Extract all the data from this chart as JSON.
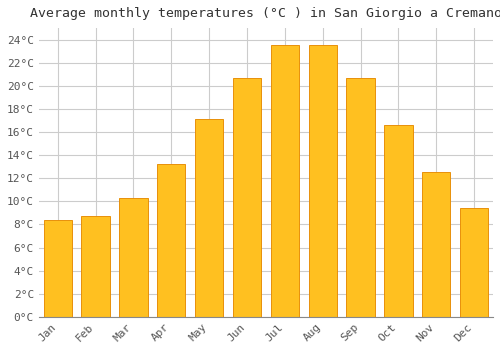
{
  "title": "Average monthly temperatures (°C ) in San Giorgio a Cremano",
  "months": [
    "Jan",
    "Feb",
    "Mar",
    "Apr",
    "May",
    "Jun",
    "Jul",
    "Aug",
    "Sep",
    "Oct",
    "Nov",
    "Dec"
  ],
  "temperatures": [
    8.4,
    8.7,
    10.3,
    13.2,
    17.1,
    20.7,
    23.5,
    23.5,
    20.7,
    16.6,
    12.5,
    9.4
  ],
  "bar_color": "#FFC020",
  "bar_edge_color": "#E8900A",
  "background_color": "#FFFFFF",
  "plot_bg_color": "#FFFFFF",
  "grid_color": "#CCCCCC",
  "ylim": [
    0,
    25
  ],
  "yticks": [
    0,
    2,
    4,
    6,
    8,
    10,
    12,
    14,
    16,
    18,
    20,
    22,
    24
  ],
  "title_fontsize": 9.5,
  "tick_fontsize": 8,
  "font_family": "monospace",
  "bar_width": 0.75
}
